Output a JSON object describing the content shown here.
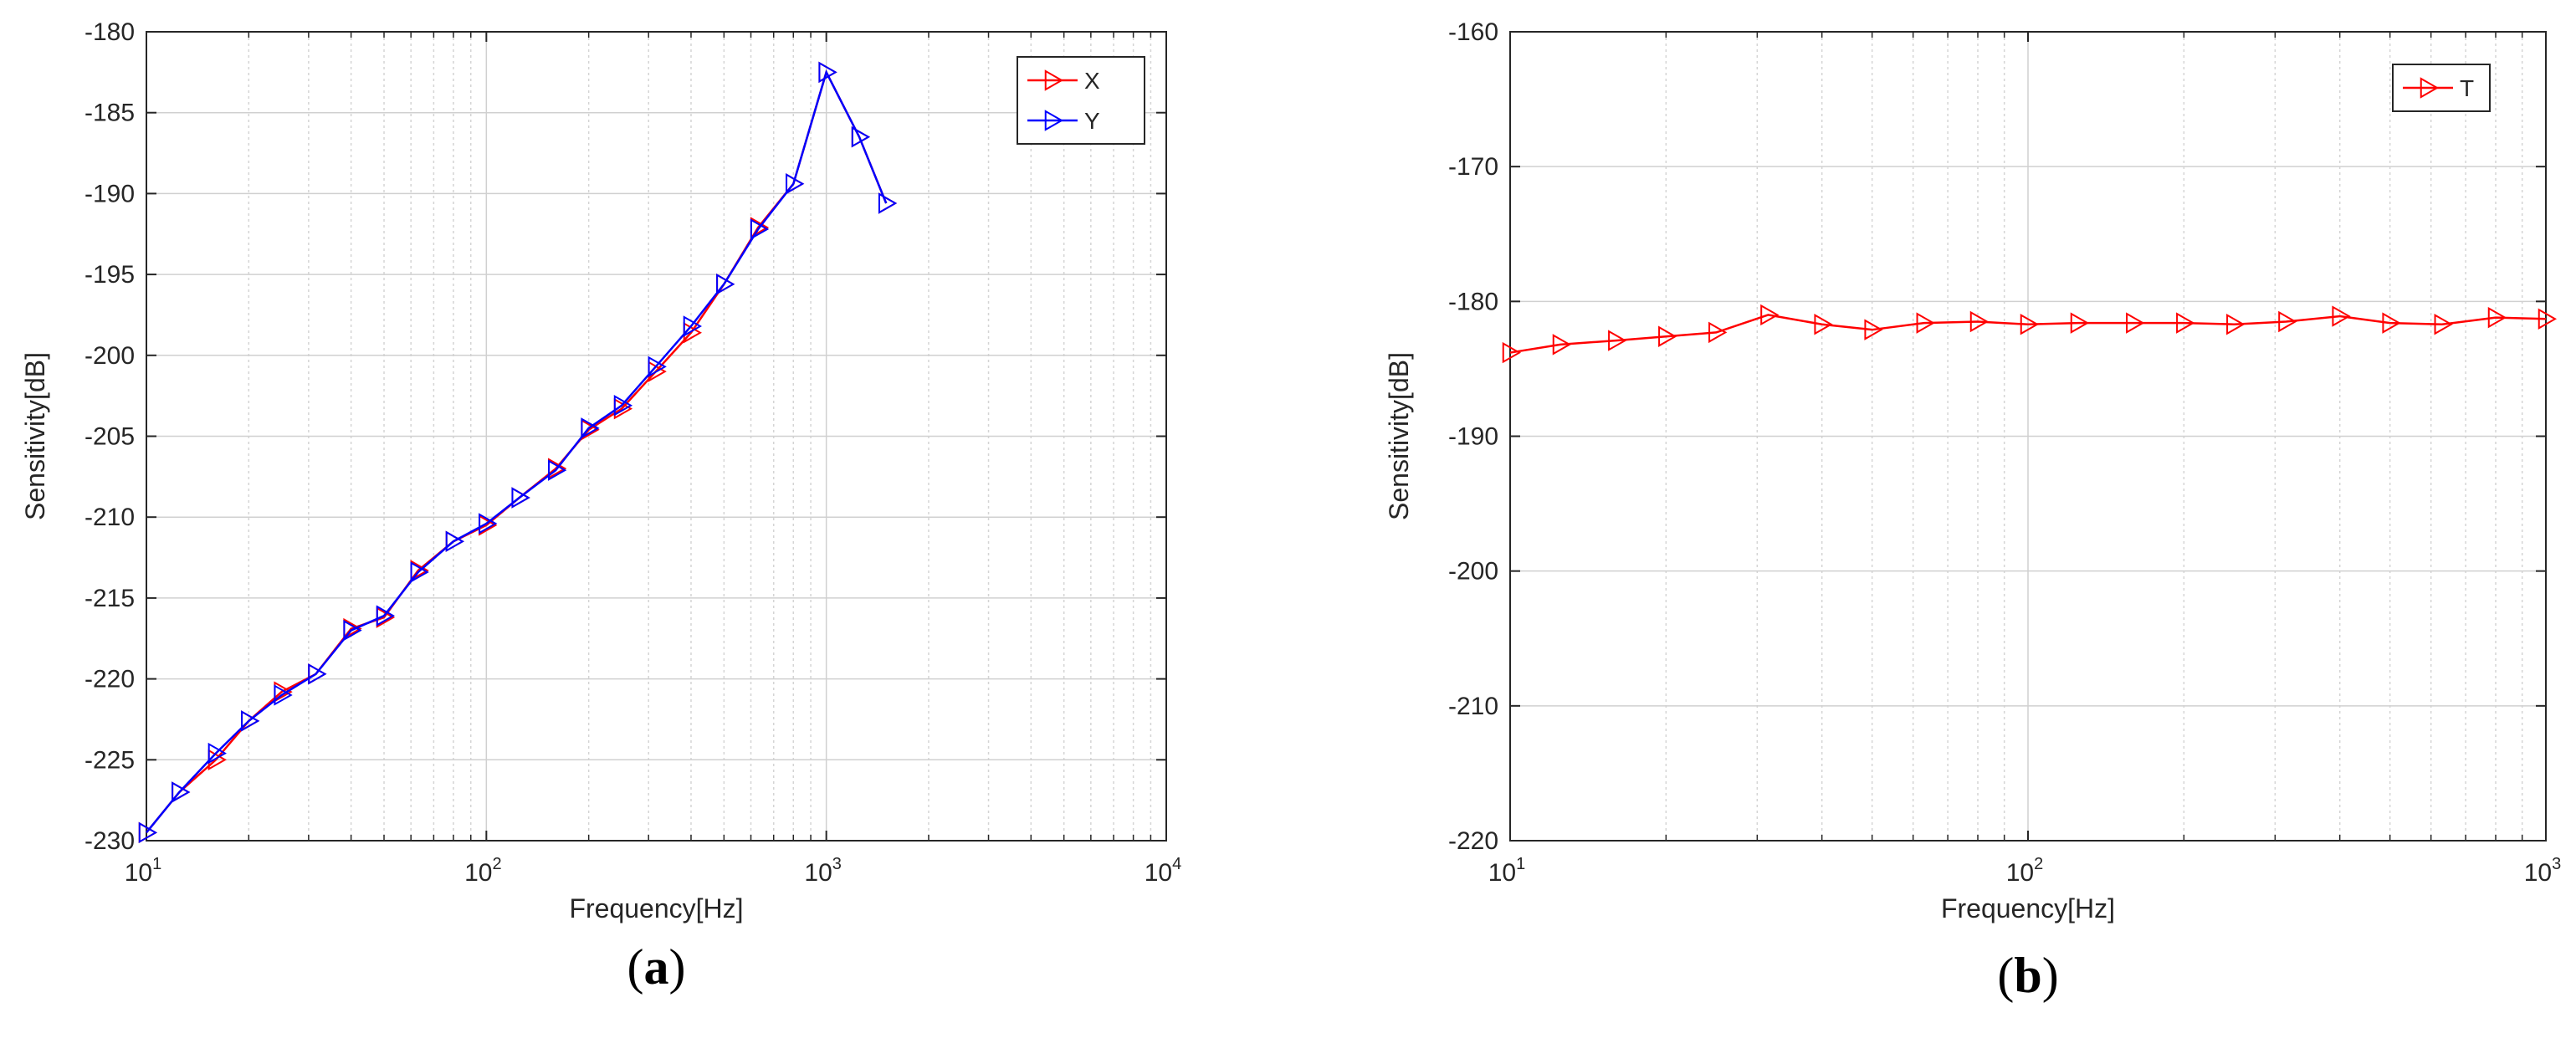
{
  "chart_data": [
    {
      "type": "line",
      "panel_label": "(a)",
      "panel_letter": "a",
      "xlabel": "Frequency[Hz]",
      "ylabel": "Sensitivity[dB]",
      "xscale": "log",
      "xlim": [
        10,
        10000
      ],
      "ylim": [
        -230,
        -180
      ],
      "x_ticks": [
        10,
        100,
        1000,
        10000
      ],
      "x_tick_labels": [
        {
          "base": "10",
          "exp": "1"
        },
        {
          "base": "10",
          "exp": "2"
        },
        {
          "base": "10",
          "exp": "3"
        },
        {
          "base": "10",
          "exp": "4"
        }
      ],
      "y_ticks": [
        -230,
        -225,
        -220,
        -215,
        -210,
        -205,
        -200,
        -195,
        -190,
        -185,
        -180
      ],
      "grid": true,
      "legend_position": "top-right",
      "x": [
        10,
        12.5,
        16,
        20,
        25,
        31.5,
        40,
        50,
        63,
        80,
        100,
        125,
        160,
        200,
        250,
        315,
        400,
        500,
        630,
        800,
        1000,
        1250,
        1500
      ],
      "series": [
        {
          "name": "X",
          "color": "#ff0000",
          "marker": "triangle-right",
          "values": [
            -229.5,
            -227.0,
            -225.0,
            -222.6,
            -220.8,
            -219.7,
            -216.9,
            -216.2,
            -213.3,
            -211.5,
            -210.5,
            -208.8,
            -207.0,
            -204.6,
            -203.3,
            -201.0,
            -198.6,
            -195.6,
            -192.1,
            -189.4,
            -182.5,
            -186.5,
            -190.6
          ]
        },
        {
          "name": "Y",
          "color": "#0000ff",
          "marker": "triangle-right",
          "values": [
            -229.5,
            -227.0,
            -224.6,
            -222.6,
            -221.0,
            -219.7,
            -217.0,
            -216.1,
            -213.4,
            -211.5,
            -210.4,
            -208.8,
            -207.1,
            -204.5,
            -203.1,
            -200.7,
            -198.2,
            -195.6,
            -192.2,
            -189.4,
            -182.5,
            -186.5,
            -190.6
          ]
        }
      ]
    },
    {
      "type": "line",
      "panel_label": "(b)",
      "panel_letter": "b",
      "xlabel": "Frequency[Hz]",
      "ylabel": "Sensitivity[dB]",
      "xscale": "log",
      "xlim": [
        10,
        1000
      ],
      "ylim": [
        -220,
        -160
      ],
      "x_ticks": [
        10,
        100,
        1000
      ],
      "x_tick_labels": [
        {
          "base": "10",
          "exp": "1"
        },
        {
          "base": "10",
          "exp": "2"
        },
        {
          "base": "10",
          "exp": "3"
        }
      ],
      "y_ticks": [
        -220,
        -210,
        -200,
        -190,
        -180,
        -170,
        -160
      ],
      "grid": true,
      "legend_position": "top-right",
      "x": [
        10,
        12.5,
        16,
        20,
        25,
        31.5,
        40,
        50,
        63,
        80,
        100,
        125,
        160,
        200,
        250,
        315,
        400,
        500,
        630,
        800,
        1000
      ],
      "series": [
        {
          "name": "T",
          "color": "#ff0000",
          "marker": "triangle-right",
          "values": [
            -183.8,
            -183.2,
            -182.9,
            -182.6,
            -182.3,
            -181.0,
            -181.7,
            -182.1,
            -181.6,
            -181.5,
            -181.7,
            -181.6,
            -181.6,
            -181.6,
            -181.7,
            -181.5,
            -181.1,
            -181.6,
            -181.7,
            -181.2,
            -181.3
          ]
        }
      ]
    }
  ]
}
